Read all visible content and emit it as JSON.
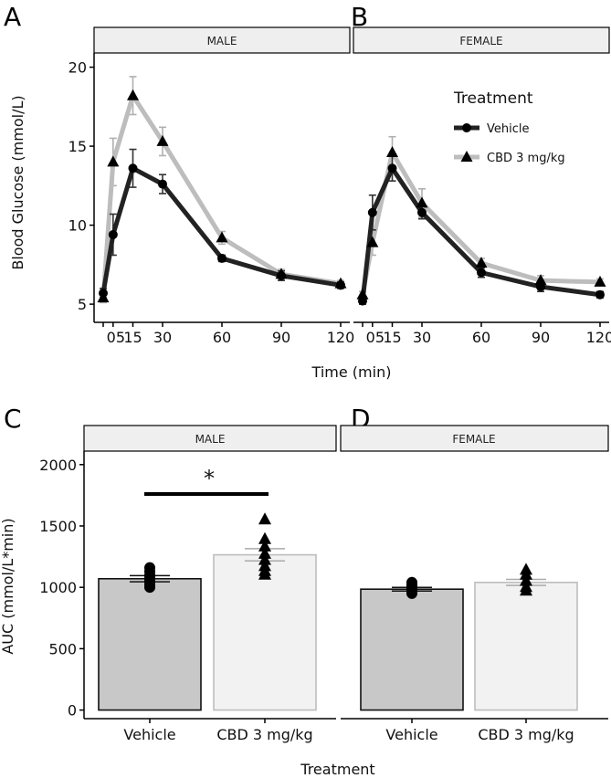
{
  "colors": {
    "vehicle_line": "#222222",
    "cbd_line": "#bdbdbd",
    "vehicle_bar": "#c8c8c8",
    "cbd_bar": "#f2f2f2",
    "strip_fill": "#efefef",
    "point": "#000000"
  },
  "figure": {
    "panel_labels": [
      "A",
      "B",
      "C",
      "D"
    ],
    "top_xlabel": "Time (min)",
    "bottom_xlabel": "Treatment",
    "legend": {
      "title": "Treatment",
      "items": [
        "Vehicle",
        "CBD 3 mg/kg"
      ]
    }
  },
  "chart_data": [
    {
      "panel": "A",
      "type": "line",
      "facet": "MALE",
      "ylabel": "Blood Glucose (mmol/L)",
      "xlabel": "Time (min)",
      "x": [
        0,
        5,
        15,
        30,
        60,
        90,
        120
      ],
      "x_tick_labels": [
        "05",
        "15",
        "30",
        "60",
        "90",
        "120"
      ],
      "ylim": [
        5,
        20
      ],
      "y_ticks": [
        5,
        10,
        15,
        20
      ],
      "series": [
        {
          "name": "Vehicle",
          "marker": "circle",
          "values": [
            5.7,
            9.4,
            13.6,
            12.6,
            7.9,
            6.8,
            6.2
          ],
          "err": [
            0.3,
            1.3,
            1.2,
            0.6,
            0.2,
            0.3,
            0.2
          ]
        },
        {
          "name": "CBD 3 mg/kg",
          "marker": "triangle",
          "values": [
            5.4,
            14.0,
            18.2,
            15.3,
            9.2,
            6.9,
            6.3
          ],
          "err": [
            0.3,
            1.5,
            1.2,
            0.9,
            0.4,
            0.3,
            0.2
          ]
        }
      ]
    },
    {
      "panel": "B",
      "type": "line",
      "facet": "FEMALE",
      "xlabel": "Time (min)",
      "x": [
        0,
        5,
        15,
        30,
        60,
        90,
        120
      ],
      "x_tick_labels": [
        "05",
        "15",
        "30",
        "60",
        "90",
        "120"
      ],
      "ylim": [
        5,
        20
      ],
      "series": [
        {
          "name": "Vehicle",
          "marker": "circle",
          "values": [
            5.2,
            10.8,
            13.6,
            10.8,
            7.0,
            6.1,
            5.6
          ],
          "err": [
            0.2,
            1.1,
            0.8,
            0.4,
            0.3,
            0.3,
            0.2
          ]
        },
        {
          "name": "CBD 3 mg/kg",
          "marker": "triangle",
          "values": [
            5.6,
            8.9,
            14.6,
            11.4,
            7.6,
            6.5,
            6.4
          ],
          "err": [
            0.2,
            0.8,
            1.0,
            0.9,
            0.3,
            0.3,
            0.2
          ]
        }
      ]
    },
    {
      "panel": "C",
      "type": "bar",
      "facet": "MALE",
      "ylabel": "AUC (mmol/L*min)",
      "xlabel": "Treatment",
      "categories": [
        "Vehicle",
        "CBD 3 mg/kg"
      ],
      "values": [
        1070,
        1265
      ],
      "err": [
        25,
        50
      ],
      "ylim": [
        0,
        2000
      ],
      "y_ticks": [
        0,
        500,
        1000,
        1500,
        2000
      ],
      "points": [
        [
          1000,
          1020,
          1040,
          1060,
          1080,
          1100,
          1130,
          1160
        ],
        [
          1100,
          1130,
          1170,
          1220,
          1270,
          1330,
          1390,
          1550
        ]
      ],
      "significance": "*"
    },
    {
      "panel": "D",
      "type": "bar",
      "facet": "FEMALE",
      "xlabel": "Treatment",
      "categories": [
        "Vehicle",
        "CBD 3 mg/kg"
      ],
      "values": [
        985,
        1040
      ],
      "err": [
        15,
        25
      ],
      "ylim": [
        0,
        2000
      ],
      "points": [
        [
          950,
          965,
          975,
          990,
          1005,
          1020,
          1040
        ],
        [
          970,
          1000,
          1050,
          1100,
          1140
        ]
      ]
    }
  ]
}
